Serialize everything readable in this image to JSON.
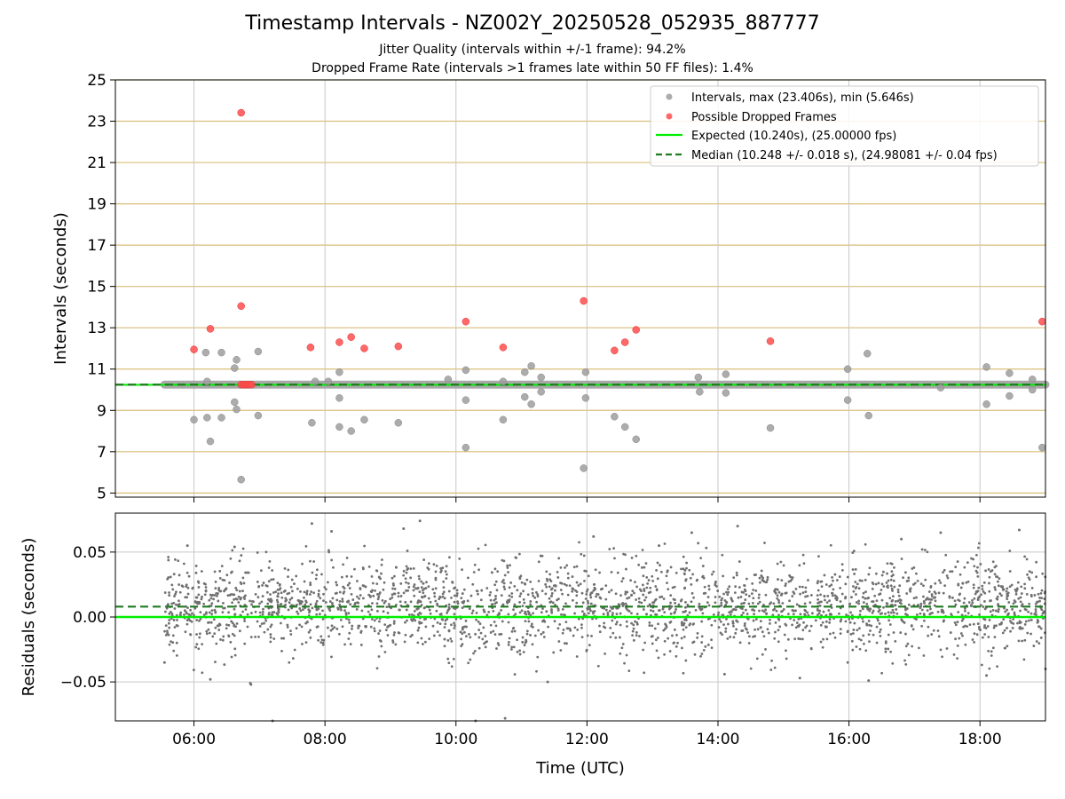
{
  "figure": {
    "title": "Timestamp Intervals - NZ002Y_20250528_052935_887777",
    "subtitle_1": "Jitter Quality (intervals within +/-1 frame): 94.2%",
    "subtitle_2": "Dropped Frame Rate (intervals >1 frames late within 50 FF files): 1.4%"
  },
  "colors": {
    "intervals": "#9e9e9e",
    "dropped": "#ff4d4d",
    "expected": "#00ee00",
    "median": "#1f7a1f",
    "hgrid_top": "#d9be78",
    "grid": "#c8c8c8",
    "residual_points": "#707070"
  },
  "chart_data": [
    {
      "type": "scatter",
      "panel": "intervals",
      "xlabel": "",
      "ylabel": "Intervals (seconds)",
      "xlim": [
        4.8,
        19.0
      ],
      "ylim": [
        4.8,
        25.0
      ],
      "yticks": [
        5,
        7,
        9,
        11,
        13,
        15,
        17,
        19,
        21,
        23,
        25
      ],
      "ytick_labels": [
        "5",
        "7",
        "9",
        "11",
        "13",
        "15",
        "17",
        "19",
        "21",
        "23",
        "25"
      ],
      "grid": true,
      "legend_position": "top-right",
      "expected_value": 10.24,
      "median_value": 10.248,
      "series": [
        {
          "name": "Intervals, max (23.406s), min (5.646s)",
          "marker": "circle",
          "baseline": {
            "y": 10.248,
            "x_start": 5.55,
            "x_end": 19.0
          },
          "points": [
            [
              6.0,
              8.55
            ],
            [
              6.18,
              11.8
            ],
            [
              6.2,
              10.4
            ],
            [
              6.2,
              8.65
            ],
            [
              6.25,
              7.5
            ],
            [
              6.42,
              11.8
            ],
            [
              6.42,
              8.65
            ],
            [
              6.62,
              11.05
            ],
            [
              6.62,
              9.4
            ],
            [
              6.65,
              11.45
            ],
            [
              6.65,
              9.05
            ],
            [
              6.72,
              5.65
            ],
            [
              6.98,
              11.85
            ],
            [
              6.98,
              8.75
            ],
            [
              7.8,
              8.4
            ],
            [
              7.85,
              10.4
            ],
            [
              8.05,
              10.4
            ],
            [
              8.22,
              10.85
            ],
            [
              8.22,
              9.6
            ],
            [
              8.22,
              8.2
            ],
            [
              8.4,
              8.0
            ],
            [
              8.6,
              8.55
            ],
            [
              9.12,
              8.4
            ],
            [
              9.88,
              10.5
            ],
            [
              10.15,
              10.95
            ],
            [
              10.15,
              9.5
            ],
            [
              10.15,
              7.2
            ],
            [
              10.72,
              10.4
            ],
            [
              10.72,
              8.55
            ],
            [
              11.05,
              10.85
            ],
            [
              11.05,
              9.65
            ],
            [
              11.15,
              11.15
            ],
            [
              11.15,
              9.3
            ],
            [
              11.3,
              10.6
            ],
            [
              11.3,
              9.9
            ],
            [
              11.95,
              6.2
            ],
            [
              11.98,
              10.85
            ],
            [
              11.98,
              9.6
            ],
            [
              12.42,
              8.7
            ],
            [
              12.58,
              8.2
            ],
            [
              12.75,
              7.6
            ],
            [
              13.7,
              10.6
            ],
            [
              13.72,
              9.9
            ],
            [
              14.12,
              10.75
            ],
            [
              14.12,
              9.85
            ],
            [
              14.8,
              8.15
            ],
            [
              15.98,
              11.0
            ],
            [
              15.98,
              9.5
            ],
            [
              16.28,
              11.75
            ],
            [
              16.3,
              8.75
            ],
            [
              17.4,
              10.1
            ],
            [
              18.1,
              11.1
            ],
            [
              18.1,
              9.3
            ],
            [
              18.45,
              10.8
            ],
            [
              18.45,
              9.7
            ],
            [
              18.8,
              10.5
            ],
            [
              18.8,
              10.0
            ],
            [
              18.95,
              7.2
            ]
          ]
        },
        {
          "name": "Possible Dropped Frames",
          "marker": "circle",
          "points": [
            [
              6.0,
              11.95
            ],
            [
              6.25,
              12.95
            ],
            [
              6.72,
              23.41
            ],
            [
              6.72,
              14.05
            ],
            [
              6.72,
              10.248
            ],
            [
              6.76,
              10.248
            ],
            [
              6.8,
              10.248
            ],
            [
              6.84,
              10.248
            ],
            [
              6.88,
              10.248
            ],
            [
              7.78,
              12.05
            ],
            [
              8.22,
              12.3
            ],
            [
              8.4,
              12.55
            ],
            [
              8.6,
              12.0
            ],
            [
              9.12,
              12.1
            ],
            [
              10.15,
              13.3
            ],
            [
              10.72,
              12.05
            ],
            [
              11.95,
              14.3
            ],
            [
              12.42,
              11.9
            ],
            [
              12.58,
              12.3
            ],
            [
              12.75,
              12.9
            ],
            [
              14.8,
              12.35
            ],
            [
              18.95,
              13.3
            ]
          ]
        },
        {
          "name": "Expected (10.240s), (25.00000 fps)",
          "marker": "line",
          "y": 10.24
        },
        {
          "name": "Median (10.248 +/- 0.018 s), (24.98081 +/- 0.04 fps)",
          "marker": "dashed-line",
          "y": 10.248
        }
      ]
    },
    {
      "type": "scatter",
      "panel": "residuals",
      "xlabel": "Time (UTC)",
      "ylabel": "Residuals (seconds)",
      "xlim": [
        4.8,
        19.0
      ],
      "ylim": [
        -0.08,
        0.08
      ],
      "xticks": [
        6,
        8,
        10,
        12,
        14,
        16,
        18
      ],
      "xtick_labels": [
        "06:00",
        "08:00",
        "10:00",
        "12:00",
        "14:00",
        "16:00",
        "18:00"
      ],
      "yticks": [
        -0.05,
        0.0,
        0.05
      ],
      "ytick_labels": [
        "−0.05",
        "0.00",
        "0.05"
      ],
      "grid": true,
      "expected_residual": 0.0,
      "median_residual": 0.008,
      "residual_summary": {
        "x_range": [
          5.55,
          19.0
        ],
        "mean": 0.008,
        "std": 0.018,
        "approx_count": 2600
      },
      "outlier_points": [
        [
          5.55,
          -0.035
        ],
        [
          5.9,
          0.055
        ],
        [
          6.25,
          -0.048
        ],
        [
          6.62,
          0.054
        ],
        [
          6.86,
          -0.051
        ],
        [
          6.87,
          -0.052
        ],
        [
          7.2,
          -0.08
        ],
        [
          7.8,
          0.072
        ],
        [
          8.1,
          0.066
        ],
        [
          9.2,
          0.068
        ],
        [
          9.45,
          0.074
        ],
        [
          10.3,
          -0.08
        ],
        [
          10.75,
          -0.078
        ],
        [
          11.4,
          -0.05
        ],
        [
          12.1,
          0.062
        ],
        [
          13.1,
          0.055
        ],
        [
          13.6,
          0.065
        ],
        [
          14.3,
          0.07
        ],
        [
          14.1,
          -0.044
        ],
        [
          15.25,
          -0.047
        ],
        [
          16.3,
          -0.049
        ],
        [
          16.8,
          0.06
        ],
        [
          17.4,
          0.065
        ],
        [
          18.1,
          -0.045
        ],
        [
          18.6,
          0.067
        ],
        [
          19.0,
          -0.04
        ]
      ]
    }
  ]
}
